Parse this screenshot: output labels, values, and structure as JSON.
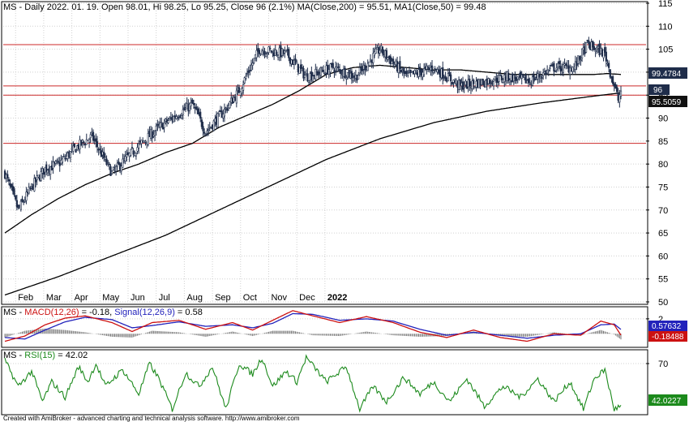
{
  "header": {
    "price_title": "MS - Daily 2022. 01. 19. Open 98.01, Hi 98.25, Lo 95.25, Close 96 (2.1%) MA(Close,200) = 95.51, MA1(Close,50) = 99.48",
    "macd_prefix": "MS - ",
    "macd_name": "MACD(12,26)",
    "macd_value": " = -0.18, ",
    "signal_name": "Signal(12,26,9)",
    "signal_value": " = 0.58",
    "rsi_prefix": "MS - ",
    "rsi_name": "RSI(15)",
    "rsi_value": " = 42.02"
  },
  "footer": {
    "credit": "Created with AmiBroker - advanced charting and technical analysis software. http://www.amibroker.com"
  },
  "badges": {
    "ma50": "99.4784",
    "close": "96",
    "ma200": "95.5059",
    "signal": "0.57632",
    "macd": "-0.18488",
    "rsi": "42.0227"
  },
  "colors": {
    "price_bars": "#1f2d4a",
    "ma": "#000000",
    "resistance": "#cc2a2a",
    "macd": "#cc1111",
    "signal": "#2222bb",
    "hist": "#777777",
    "rsi": "#1c8a1c",
    "grid": "#d0d0d0",
    "badge_ma50": "#1f2d4a",
    "badge_close": "#1f2d4a",
    "badge_ma200": "#111111",
    "badge_signal": "#2222bb",
    "badge_macd": "#cc1111",
    "badge_rsi": "#1c8a1c"
  },
  "chart_data": [
    {
      "type": "candlestick",
      "symbol": "MS",
      "title": "MS - Daily 2022. 01. 19. Open 98.01, Hi 98.25, Lo 95.25, Close 96 (2.1%) MA(Close,200) = 95.51, MA1(Close,50) = 99.48",
      "x_labels": [
        "Feb",
        "Mar",
        "Apr",
        "May",
        "Jun",
        "Jul",
        "Aug",
        "Sep",
        "Oct",
        "Nov",
        "Dec",
        "2022"
      ],
      "y_ticks": [
        50,
        55,
        60,
        65,
        70,
        75,
        80,
        85,
        90,
        95,
        100,
        105,
        110,
        115
      ],
      "ylim": [
        50,
        115
      ],
      "horizontal_lines": [
        106,
        97,
        95,
        84.5
      ],
      "close_anchors": {
        "x": [
          0,
          10,
          20,
          30,
          40,
          55,
          65,
          80,
          100,
          115,
          125,
          140,
          150,
          165,
          175,
          190,
          210,
          225,
          245,
          262,
          280,
          300,
          320,
          340,
          360,
          375,
          392,
          410,
          425,
          435,
          448,
          455,
          458,
          460
        ],
        "y": [
          78,
          70,
          75,
          79,
          80,
          84,
          86,
          78,
          84,
          88,
          90,
          93,
          87,
          92,
          96,
          105,
          104,
          99,
          101,
          99,
          105,
          99,
          101,
          97,
          98,
          99,
          98,
          101,
          101,
          106,
          104,
          97,
          94,
          96
        ]
      },
      "ma50": {
        "x": [
          0,
          20,
          40,
          60,
          80,
          100,
          120,
          140,
          160,
          180,
          200,
          210,
          220,
          240,
          260,
          280,
          300,
          320,
          340,
          360,
          380,
          400,
          420,
          440,
          450,
          460
        ],
        "y": [
          65,
          69,
          72.5,
          75.5,
          78,
          80,
          82.5,
          84.5,
          88,
          90.5,
          93,
          94.5,
          96,
          99.5,
          101,
          101.5,
          101,
          100.5,
          100.5,
          100,
          99.5,
          99.5,
          99.5,
          99.5,
          99.7,
          99.5
        ]
      },
      "ma200": {
        "x": [
          0,
          40,
          80,
          120,
          160,
          200,
          240,
          280,
          320,
          360,
          400,
          440,
          460
        ],
        "y": [
          51.5,
          55.5,
          60,
          64.5,
          70,
          75.5,
          81,
          85.5,
          89,
          91.5,
          93.3,
          94.8,
          95.5
        ]
      }
    },
    {
      "type": "line",
      "title": "MACD(12,26)",
      "y_ticks": [
        2
      ],
      "series": [
        {
          "name": "MACD(12,26)",
          "value": -0.18,
          "x": [
            0,
            15,
            30,
            45,
            60,
            80,
            95,
            110,
            130,
            150,
            170,
            185,
            200,
            215,
            230,
            250,
            270,
            290,
            310,
            330,
            350,
            370,
            390,
            410,
            430,
            445,
            455,
            460
          ],
          "y": [
            -1,
            -0.3,
            1.2,
            2.1,
            2.4,
            1.5,
            0.3,
            1.5,
            1.8,
            0.6,
            1.5,
            0.5,
            1.8,
            3.1,
            2.4,
            1.5,
            2.3,
            1.5,
            0.2,
            -0.5,
            0.5,
            -0.5,
            -1,
            0,
            -0.2,
            1.7,
            1.2,
            -0.18
          ]
        },
        {
          "name": "Signal(12,26,9)",
          "value": 0.58,
          "x": [
            0,
            15,
            30,
            45,
            60,
            80,
            95,
            110,
            130,
            150,
            170,
            185,
            200,
            215,
            230,
            250,
            270,
            290,
            310,
            330,
            350,
            370,
            390,
            410,
            430,
            445,
            455,
            460
          ],
          "y": [
            -0.5,
            -0.7,
            0.5,
            1.6,
            2.2,
            1.9,
            0.8,
            1.1,
            1.6,
            1.0,
            1.2,
            0.8,
            1.4,
            2.7,
            2.6,
            1.8,
            2.0,
            1.7,
            0.6,
            -0.2,
            0.2,
            -0.2,
            -0.6,
            -0.2,
            0.0,
            1.2,
            1.3,
            0.58
          ]
        }
      ]
    },
    {
      "type": "line",
      "title": "RSI(15)",
      "y_ticks": [
        70
      ],
      "series": [
        {
          "name": "RSI(15)",
          "value": 42.02,
          "x": [
            0,
            10,
            20,
            28,
            35,
            45,
            55,
            62,
            68,
            75,
            88,
            100,
            108,
            115,
            125,
            135,
            145,
            155,
            165,
            175,
            185,
            192,
            200,
            210,
            218,
            225,
            240,
            255,
            265,
            275,
            285,
            298,
            310,
            320,
            332,
            345,
            358,
            372,
            385,
            398,
            410,
            422,
            432,
            440,
            448,
            455,
            460
          ],
          "y": [
            72,
            55,
            65,
            45,
            58,
            48,
            68,
            58,
            70,
            55,
            66,
            50,
            70,
            60,
            40,
            64,
            55,
            68,
            40,
            70,
            63,
            74,
            55,
            65,
            58,
            74,
            58,
            68,
            40,
            55,
            45,
            61,
            50,
            58,
            45,
            60,
            42,
            55,
            48,
            60,
            45,
            58,
            40,
            60,
            66,
            40,
            42
          ]
        }
      ]
    }
  ]
}
